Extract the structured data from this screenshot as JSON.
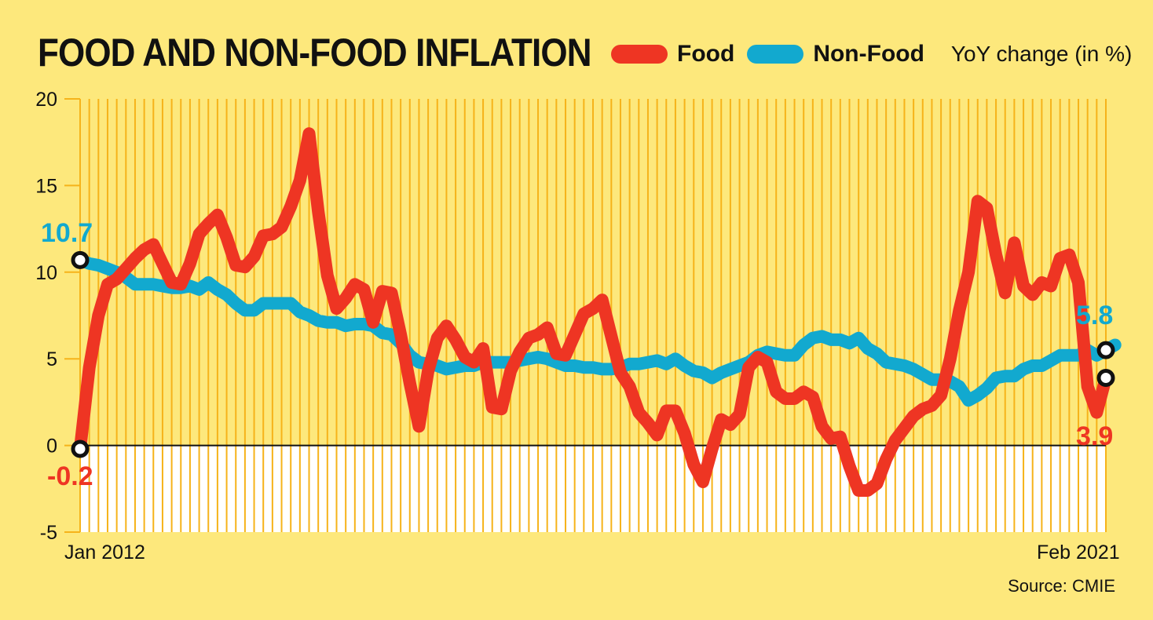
{
  "title": "FOOD AND NON-FOOD INFLATION",
  "legend": {
    "food": "Food",
    "nonfood": "Non-Food"
  },
  "units": "YoY change (in %)",
  "source": "Source: CMIE",
  "colors": {
    "food": "#ee3523",
    "nonfood": "#12a9cf",
    "background": "#fde87c",
    "grid": "#f6b31a"
  },
  "annotations": {
    "food_start": "-0.2",
    "nonfood_start": "10.7",
    "nonfood_end": "5.8",
    "food_end": "3.9"
  },
  "chart_data": {
    "type": "line",
    "x_start": "Jan 2012",
    "x_end": "Feb 2021",
    "x_tick_labels": [
      "Jan 2012",
      "Feb 2021"
    ],
    "y_tick_labels": [
      "20",
      "15",
      "10",
      "5",
      "0",
      "-5"
    ],
    "ylim": [
      -5,
      20
    ],
    "grid": "vertical monthly lines above zero",
    "legend_position": "top",
    "series": [
      {
        "name": "Food",
        "values": [
          -0.2,
          4.5,
          7.5,
          9.3,
          9.6,
          10.2,
          10.8,
          11.3,
          11.6,
          10.5,
          9.4,
          9.3,
          10.5,
          12.2,
          12.8,
          13.3,
          12.0,
          10.4,
          10.3,
          10.9,
          12.1,
          12.2,
          12.6,
          13.8,
          15.3,
          18.0,
          13.5,
          9.8,
          7.9,
          8.5,
          9.3,
          9.0,
          7.1,
          8.9,
          8.8,
          6.4,
          3.6,
          1.1,
          4.3,
          6.2,
          6.9,
          6.1,
          5.1,
          4.8,
          5.6,
          2.2,
          2.1,
          4.3,
          5.4,
          6.2,
          6.4,
          6.8,
          5.3,
          5.2,
          6.4,
          7.6,
          7.9,
          8.4,
          6.3,
          4.2,
          3.4,
          1.9,
          1.3,
          0.6,
          2.0,
          2.0,
          0.7,
          -1.1,
          -2.1,
          -0.2,
          1.5,
          1.2,
          1.8,
          4.5,
          5.1,
          4.8,
          3.1,
          2.7,
          2.7,
          3.1,
          2.8,
          1.1,
          0.4,
          0.5,
          -1.2,
          -2.6,
          -2.6,
          -2.2,
          -0.8,
          0.3,
          1.0,
          1.7,
          2.1,
          2.3,
          2.9,
          5.0,
          7.8,
          10.0,
          14.1,
          13.7,
          11.0,
          8.8,
          11.7,
          9.2,
          8.7,
          9.4,
          9.2,
          10.8,
          11.0,
          9.4,
          3.4,
          1.9,
          3.9
        ]
      },
      {
        "name": "Non-Food",
        "values": [
          10.7,
          10.5,
          10.4,
          10.2,
          10.0,
          9.7,
          9.3,
          9.3,
          9.3,
          9.2,
          9.1,
          9.1,
          9.2,
          9.0,
          9.4,
          9.0,
          8.7,
          8.2,
          7.8,
          7.8,
          8.2,
          8.2,
          8.2,
          8.2,
          7.7,
          7.5,
          7.2,
          7.1,
          7.1,
          6.9,
          7.0,
          7.0,
          6.9,
          6.5,
          6.4,
          5.9,
          5.2,
          4.8,
          4.7,
          4.6,
          4.4,
          4.5,
          4.6,
          4.6,
          4.8,
          4.8,
          4.8,
          4.8,
          4.9,
          5.0,
          5.1,
          5.0,
          4.8,
          4.6,
          4.6,
          4.5,
          4.5,
          4.4,
          4.4,
          4.5,
          4.7,
          4.7,
          4.8,
          4.9,
          4.7,
          5.0,
          4.6,
          4.3,
          4.2,
          3.9,
          4.2,
          4.4,
          4.6,
          4.8,
          5.2,
          5.4,
          5.3,
          5.2,
          5.2,
          5.8,
          6.2,
          6.3,
          6.1,
          6.1,
          5.9,
          6.2,
          5.6,
          5.3,
          4.8,
          4.7,
          4.6,
          4.4,
          4.1,
          3.8,
          3.8,
          3.7,
          3.4,
          2.6,
          2.9,
          3.3,
          3.9,
          4.0,
          4.0,
          4.4,
          4.6,
          4.6,
          4.9,
          5.2,
          5.2,
          5.2,
          5.5,
          5.2,
          5.5,
          5.8
        ]
      }
    ]
  }
}
